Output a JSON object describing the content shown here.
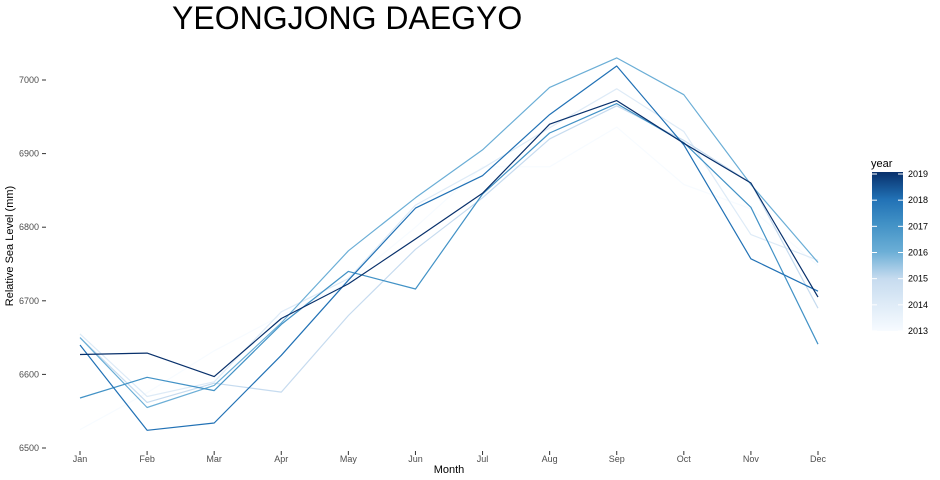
{
  "chart_data": {
    "type": "line",
    "title": "YEONGJONG DAEGYO",
    "xlabel": "Month",
    "ylabel": "Relative Sea Level (mm)",
    "categories": [
      "Jan",
      "Feb",
      "Mar",
      "Apr",
      "May",
      "Jun",
      "Jul",
      "Aug",
      "Sep",
      "Oct",
      "Nov",
      "Dec"
    ],
    "ylim": [
      6500,
      7050
    ],
    "yticks": [
      6500,
      6600,
      6700,
      6800,
      6900,
      7000
    ],
    "grid": false,
    "legend": {
      "title": "year",
      "position": "right",
      "labels": [
        "2019",
        "2018",
        "2017",
        "2016",
        "2015",
        "2014",
        "2013"
      ],
      "range": [
        2013,
        2019
      ]
    },
    "colors": {
      "low": "#f7fbff",
      "high": "#08306b"
    },
    "series": [
      {
        "year": 2013,
        "values": [
          6525,
          6575,
          6632,
          6680,
          6725,
          6800,
          6882,
          6882,
          6936,
          6858,
          6825,
          6748
        ]
      },
      {
        "year": 2014,
        "values": [
          6655,
          6570,
          6590,
          6685,
          6730,
          6830,
          6880,
          6935,
          6988,
          6930,
          6790,
          6755
        ]
      },
      {
        "year": 2015,
        "values": [
          6650,
          6562,
          6588,
          6576,
          6680,
          6770,
          6840,
          6920,
          6965,
          6918,
          6860,
          6690
        ]
      },
      {
        "year": 2016,
        "values": [
          6650,
          6555,
          6585,
          6670,
          6768,
          6840,
          6905,
          6990,
          7030,
          6980,
          6858,
          6752
        ]
      },
      {
        "year": 2017,
        "values": [
          6568,
          6596,
          6578,
          6668,
          6740,
          6716,
          6845,
          6928,
          6968,
          6915,
          6827,
          6641
        ]
      },
      {
        "year": 2018,
        "values": [
          6640,
          6524,
          6534,
          6626,
          6728,
          6826,
          6870,
          6953,
          7019,
          6912,
          6757,
          6713
        ]
      },
      {
        "year": 2019,
        "values": [
          6627,
          6629,
          6597,
          6676,
          6723,
          6784,
          6846,
          6940,
          6972,
          6914,
          6860,
          6705
        ]
      }
    ]
  }
}
